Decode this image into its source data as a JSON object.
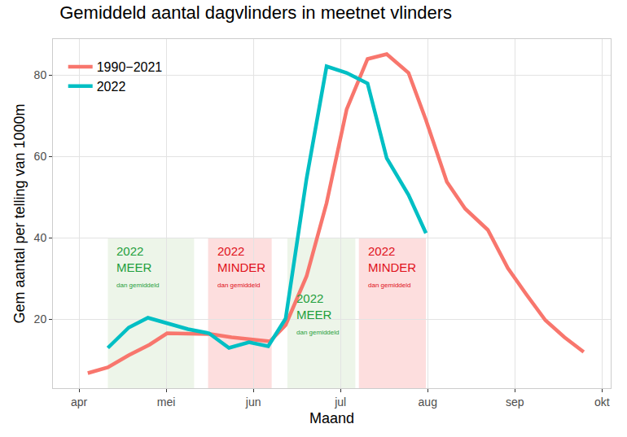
{
  "chart_data": {
    "type": "line",
    "title": "Gemiddeld aantal dagvlinders in meetnet vlinders",
    "x_label": "Maand",
    "y_label": "Gem aantal per telling van 1000m",
    "xlim": [
      3.7,
      10.1
    ],
    "xticks": [
      {
        "value": 4,
        "label": "apr"
      },
      {
        "value": 5,
        "label": "mei"
      },
      {
        "value": 6,
        "label": "jun"
      },
      {
        "value": 7,
        "label": "jul"
      },
      {
        "value": 8,
        "label": "aug"
      },
      {
        "value": 9,
        "label": "sep"
      },
      {
        "value": 10,
        "label": "okt"
      }
    ],
    "ylim": [
      3.1,
      88.9
    ],
    "yticks": [
      20,
      40,
      60,
      80
    ],
    "grid": true,
    "legend": "top left",
    "series": [
      {
        "name": "1990−2021",
        "color": "#F8766D",
        "x": [
          4.1,
          4.33,
          4.57,
          4.81,
          5.01,
          5.25,
          5.51,
          5.75,
          5.98,
          6.19,
          6.37,
          6.61,
          6.84,
          7.07,
          7.31,
          7.53,
          7.78,
          7.98,
          8.22,
          8.43,
          8.69,
          8.92,
          9.13,
          9.35,
          9.57,
          9.79
        ],
        "values": [
          6.8,
          8.2,
          11.2,
          13.8,
          16.6,
          16.6,
          16.4,
          15.6,
          15.0,
          14.6,
          18.6,
          30.6,
          48.6,
          71.6,
          84.0,
          85.2,
          80.6,
          69.0,
          53.8,
          47.2,
          42.0,
          32.6,
          26.2,
          19.8,
          15.6,
          12.0
        ]
      },
      {
        "name": "2022",
        "color": "#00BFC4",
        "x": [
          4.33,
          4.57,
          4.79,
          5.02,
          5.25,
          5.49,
          5.72,
          5.95,
          6.17,
          6.37,
          6.61,
          6.84,
          7.07,
          7.31,
          7.53,
          7.78,
          7.98
        ],
        "values": [
          13.0,
          18.0,
          20.4,
          19.0,
          17.6,
          16.6,
          13.0,
          14.4,
          13.4,
          20.2,
          54.6,
          82.2,
          80.6,
          78.0,
          59.6,
          50.6,
          41.2
        ]
      }
    ],
    "regions": [
      {
        "x0": 4.33,
        "x1": 5.32,
        "ymax": 40,
        "color": "#e7f2e1",
        "text_color": "#1e9e3c",
        "label_y": 39,
        "lines": [
          "2022",
          "MEER"
        ],
        "note": "dan gemiddeld"
      },
      {
        "x0": 5.48,
        "x1": 6.21,
        "ymax": 40,
        "color": "#fcd3d3",
        "text_color": "#e0101a",
        "label_y": 39,
        "lines": [
          "2022",
          "MINDER"
        ],
        "note": "dan gemiddeld"
      },
      {
        "x0": 6.39,
        "x1": 7.17,
        "ymax": 40,
        "color": "#e7f2e1",
        "text_color": "#1e9e3c",
        "label_y": 27.4,
        "lines": [
          "2022",
          "MEER"
        ],
        "note": "dan gemiddeld"
      },
      {
        "x0": 7.21,
        "x1": 7.98,
        "ymax": 40,
        "color": "#fcd3d3",
        "text_color": "#e0101a",
        "label_y": 39,
        "lines": [
          "2022",
          "MINDER"
        ],
        "note": "dan gemiddeld"
      }
    ]
  }
}
